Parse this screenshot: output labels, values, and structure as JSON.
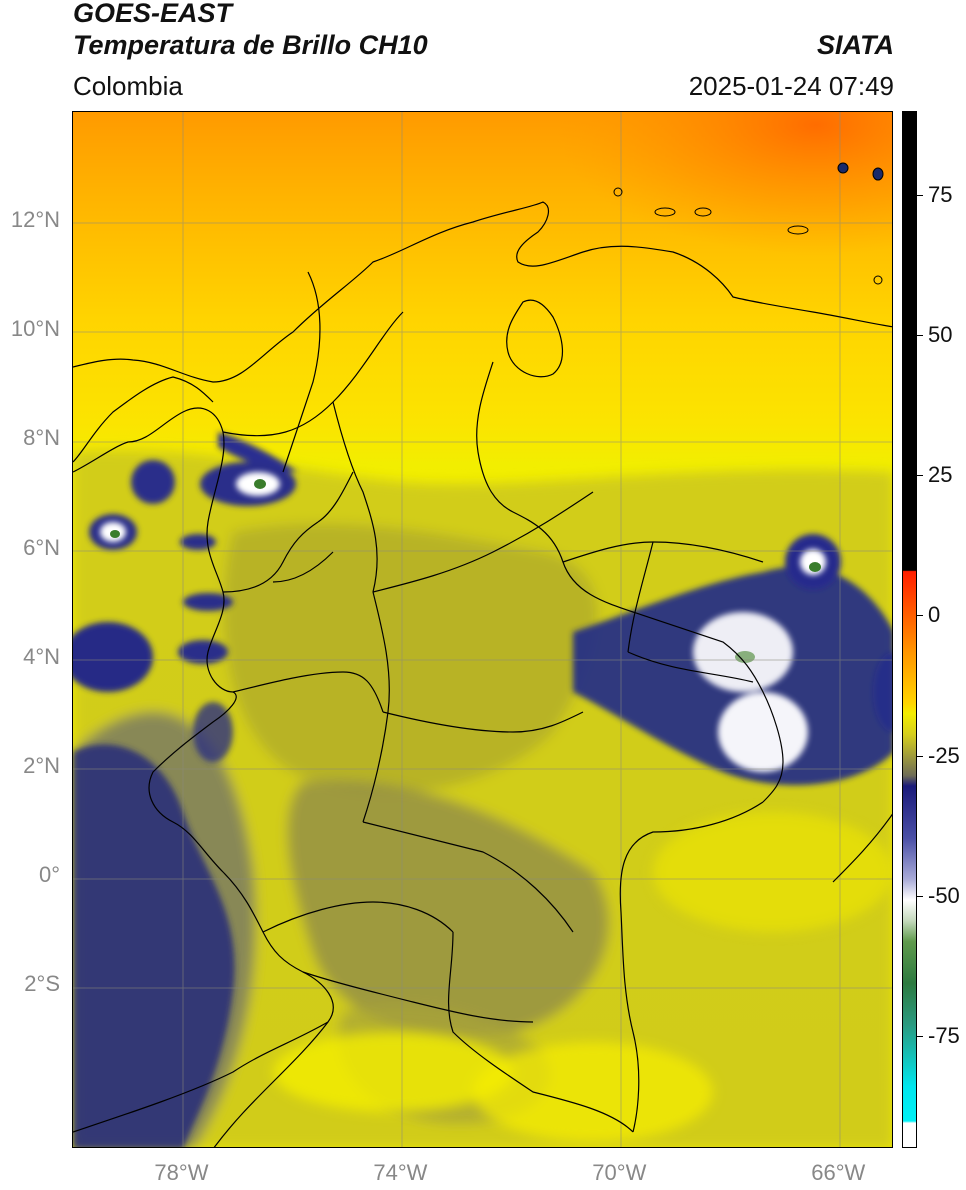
{
  "header": {
    "title_line1": "GOES-EAST",
    "title_line2": "Temperatura de Brillo CH10",
    "brand": "SIATA",
    "region": "Colombia",
    "datetime": "2025-01-24 07:49"
  },
  "map": {
    "lon_range": [
      -80,
      -65
    ],
    "lat_range": [
      -5,
      14
    ],
    "lat_ticks": [
      {
        "lat": 12,
        "label": "12°N"
      },
      {
        "lat": 10,
        "label": "10°N"
      },
      {
        "lat": 8,
        "label": "8°N"
      },
      {
        "lat": 6,
        "label": "6°N"
      },
      {
        "lat": 4,
        "label": "4°N"
      },
      {
        "lat": 2,
        "label": "2°N"
      },
      {
        "lat": 0,
        "label": "0°"
      },
      {
        "lat": -2,
        "label": "2°S"
      }
    ],
    "lon_ticks": [
      {
        "lon": -78,
        "label": "78°W"
      },
      {
        "lon": -74,
        "label": "74°W"
      },
      {
        "lon": -70,
        "label": "70°W"
      },
      {
        "lon": -66,
        "label": "66°W"
      }
    ],
    "colors": {
      "warm_top": "#ff7a00",
      "warm_mid": "#ffc000",
      "yellow": "#f2ee00",
      "olive": "#b9b52a",
      "gray": "#6f6f66",
      "navy": "#1c1f80",
      "white": "#ffffff",
      "green": "#3a7d2c"
    }
  },
  "colorbar": {
    "range": [
      -95,
      90
    ],
    "ticks": [
      {
        "value": 75,
        "label": "75"
      },
      {
        "value": 50,
        "label": "50"
      },
      {
        "value": 25,
        "label": "25"
      },
      {
        "value": 0,
        "label": "0"
      },
      {
        "value": -25,
        "label": "-25"
      },
      {
        "value": -50,
        "label": "-50"
      },
      {
        "value": -75,
        "label": "-75"
      }
    ]
  }
}
